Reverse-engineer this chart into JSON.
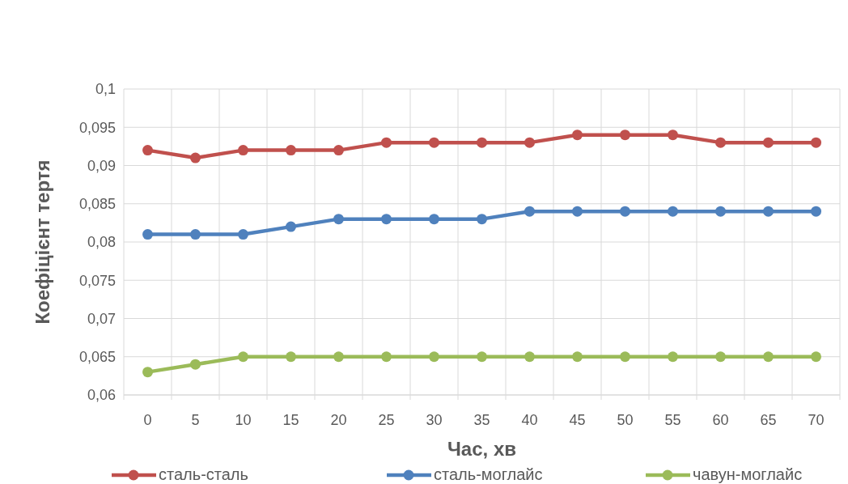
{
  "chart_data": {
    "type": "line",
    "xlabel": "Час, хв",
    "ylabel": "Коефіцієнт тертя",
    "categories": [
      "0",
      "5",
      "10",
      "15",
      "20",
      "25",
      "30",
      "35",
      "40",
      "45",
      "50",
      "55",
      "60",
      "65",
      "70"
    ],
    "series": [
      {
        "name": "сталь-сталь",
        "color": "#c0504d",
        "values": [
          0.092,
          0.091,
          0.092,
          0.092,
          0.092,
          0.093,
          0.093,
          0.093,
          0.093,
          0.094,
          0.094,
          0.094,
          0.093,
          0.093,
          0.093
        ]
      },
      {
        "name": "сталь-моглайс",
        "color": "#4f81bd",
        "values": [
          0.081,
          0.081,
          0.081,
          0.082,
          0.083,
          0.083,
          0.083,
          0.083,
          0.084,
          0.084,
          0.084,
          0.084,
          0.084,
          0.084,
          0.084
        ]
      },
      {
        "name": "чавун-моглайс",
        "color": "#9bbb59",
        "values": [
          0.063,
          0.064,
          0.065,
          0.065,
          0.065,
          0.065,
          0.065,
          0.065,
          0.065,
          0.065,
          0.065,
          0.065,
          0.065,
          0.065,
          0.065
        ]
      }
    ],
    "ylim": [
      0.06,
      0.1
    ],
    "yticks": [
      {
        "value": 0.06,
        "label": "0,06"
      },
      {
        "value": 0.065,
        "label": "0,065"
      },
      {
        "value": 0.07,
        "label": "0,07"
      },
      {
        "value": 0.075,
        "label": "0,075"
      },
      {
        "value": 0.08,
        "label": "0,08"
      },
      {
        "value": 0.085,
        "label": "0,085"
      },
      {
        "value": 0.09,
        "label": "0,09"
      },
      {
        "value": 0.095,
        "label": "0,095"
      },
      {
        "value": 0.1,
        "label": "0,1"
      }
    ],
    "grid": true,
    "legend": "bottom",
    "marker": "circle",
    "line_style": "solid"
  }
}
